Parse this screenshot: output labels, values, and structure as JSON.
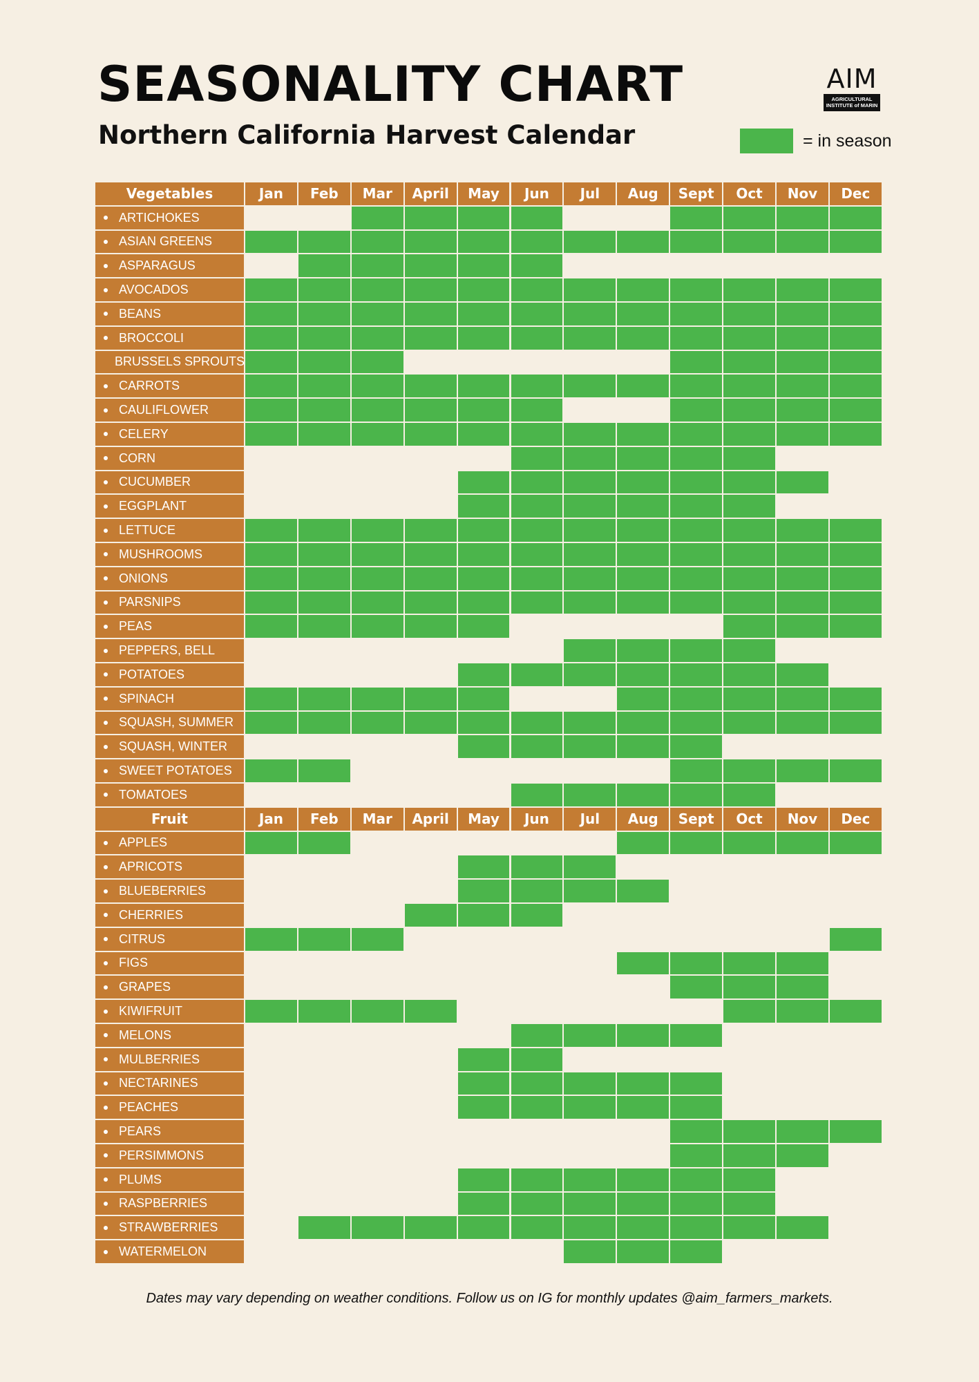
{
  "title": "SEASONALITY CHART",
  "subtitle": "Northern California Harvest Calendar",
  "logo": {
    "mark": "AIM",
    "line1": "AGRICULTURAL",
    "line2": "INSTITUTE of MARIN"
  },
  "legend": {
    "label": "= in season",
    "color": "#4bb54b"
  },
  "footer": "Dates may vary depending on weather conditions. Follow us on IG for monthly updates @aim_farmers_markets.",
  "colors": {
    "background": "#f6efe3",
    "header": "#c47c33",
    "in_season": "#4bb54b"
  },
  "chart_data": {
    "type": "table",
    "months": [
      "Jan",
      "Feb",
      "Mar",
      "April",
      "May",
      "Jun",
      "Jul",
      "Aug",
      "Sept",
      "Oct",
      "Nov",
      "Dec"
    ],
    "sections": [
      {
        "name": "Vegetables",
        "items": [
          {
            "name": "ARTICHOKES",
            "in_season": [
              0,
              0,
              1,
              1,
              1,
              1,
              0,
              0,
              1,
              1,
              1,
              1
            ]
          },
          {
            "name": "ASIAN GREENS",
            "in_season": [
              1,
              1,
              1,
              1,
              1,
              1,
              1,
              1,
              1,
              1,
              1,
              1
            ]
          },
          {
            "name": "ASPARAGUS",
            "in_season": [
              0,
              1,
              1,
              1,
              1,
              1,
              0,
              0,
              0,
              0,
              0,
              0
            ]
          },
          {
            "name": "AVOCADOS",
            "in_season": [
              1,
              1,
              1,
              1,
              1,
              1,
              1,
              1,
              1,
              1,
              1,
              1
            ]
          },
          {
            "name": "BEANS",
            "in_season": [
              1,
              1,
              1,
              1,
              1,
              1,
              1,
              1,
              1,
              1,
              1,
              1
            ]
          },
          {
            "name": "BROCCOLI",
            "in_season": [
              1,
              1,
              1,
              1,
              1,
              1,
              1,
              1,
              1,
              1,
              1,
              1
            ]
          },
          {
            "name": "BRUSSELS SPROUTS",
            "in_season": [
              1,
              1,
              1,
              0,
              0,
              0,
              0,
              0,
              1,
              1,
              1,
              1
            ]
          },
          {
            "name": "CARROTS",
            "in_season": [
              1,
              1,
              1,
              1,
              1,
              1,
              1,
              1,
              1,
              1,
              1,
              1
            ]
          },
          {
            "name": "CAULIFLOWER",
            "in_season": [
              1,
              1,
              1,
              1,
              1,
              1,
              0,
              0,
              1,
              1,
              1,
              1
            ]
          },
          {
            "name": "CELERY",
            "in_season": [
              1,
              1,
              1,
              1,
              1,
              1,
              1,
              1,
              1,
              1,
              1,
              1
            ]
          },
          {
            "name": "CORN",
            "in_season": [
              0,
              0,
              0,
              0,
              0,
              1,
              1,
              1,
              1,
              1,
              0,
              0
            ]
          },
          {
            "name": "CUCUMBER",
            "in_season": [
              0,
              0,
              0,
              0,
              1,
              1,
              1,
              1,
              1,
              1,
              1,
              0
            ]
          },
          {
            "name": "EGGPLANT",
            "in_season": [
              0,
              0,
              0,
              0,
              1,
              1,
              1,
              1,
              1,
              1,
              0,
              0
            ]
          },
          {
            "name": "LETTUCE",
            "in_season": [
              1,
              1,
              1,
              1,
              1,
              1,
              1,
              1,
              1,
              1,
              1,
              1
            ]
          },
          {
            "name": "MUSHROOMS",
            "in_season": [
              1,
              1,
              1,
              1,
              1,
              1,
              1,
              1,
              1,
              1,
              1,
              1
            ]
          },
          {
            "name": "ONIONS",
            "in_season": [
              1,
              1,
              1,
              1,
              1,
              1,
              1,
              1,
              1,
              1,
              1,
              1
            ]
          },
          {
            "name": "PARSNIPS",
            "in_season": [
              1,
              1,
              1,
              1,
              1,
              1,
              1,
              1,
              1,
              1,
              1,
              1
            ]
          },
          {
            "name": "PEAS",
            "in_season": [
              1,
              1,
              1,
              1,
              1,
              0,
              0,
              0,
              0,
              1,
              1,
              1
            ]
          },
          {
            "name": "PEPPERS, BELL",
            "in_season": [
              0,
              0,
              0,
              0,
              0,
              0,
              1,
              1,
              1,
              1,
              0,
              0
            ]
          },
          {
            "name": "POTATOES",
            "in_season": [
              0,
              0,
              0,
              0,
              1,
              1,
              1,
              1,
              1,
              1,
              1,
              0
            ]
          },
          {
            "name": "SPINACH",
            "in_season": [
              1,
              1,
              1,
              1,
              1,
              0,
              0,
              1,
              1,
              1,
              1,
              1
            ]
          },
          {
            "name": "SQUASH, SUMMER",
            "in_season": [
              1,
              1,
              1,
              1,
              1,
              1,
              1,
              1,
              1,
              1,
              1,
              1
            ]
          },
          {
            "name": "SQUASH, WINTER",
            "in_season": [
              0,
              0,
              0,
              0,
              1,
              1,
              1,
              1,
              1,
              0,
              0,
              0
            ]
          },
          {
            "name": "SWEET POTATOES",
            "in_season": [
              1,
              1,
              0,
              0,
              0,
              0,
              0,
              0,
              1,
              1,
              1,
              1
            ]
          },
          {
            "name": "TOMATOES",
            "in_season": [
              0,
              0,
              0,
              0,
              0,
              1,
              1,
              1,
              1,
              1,
              0,
              0
            ]
          }
        ]
      },
      {
        "name": "Fruit",
        "items": [
          {
            "name": "APPLES",
            "in_season": [
              1,
              1,
              0,
              0,
              0,
              0,
              0,
              1,
              1,
              1,
              1,
              1
            ]
          },
          {
            "name": "APRICOTS",
            "in_season": [
              0,
              0,
              0,
              0,
              1,
              1,
              1,
              0,
              0,
              0,
              0,
              0
            ]
          },
          {
            "name": "BLUEBERRIES",
            "in_season": [
              0,
              0,
              0,
              0,
              1,
              1,
              1,
              1,
              0,
              0,
              0,
              0
            ]
          },
          {
            "name": "CHERRIES",
            "in_season": [
              0,
              0,
              0,
              1,
              1,
              1,
              0,
              0,
              0,
              0,
              0,
              0
            ]
          },
          {
            "name": "CITRUS",
            "in_season": [
              1,
              1,
              1,
              0,
              0,
              0,
              0,
              0,
              0,
              0,
              0,
              1
            ]
          },
          {
            "name": "FIGS",
            "in_season": [
              0,
              0,
              0,
              0,
              0,
              0,
              0,
              1,
              1,
              1,
              1,
              0
            ]
          },
          {
            "name": "GRAPES",
            "in_season": [
              0,
              0,
              0,
              0,
              0,
              0,
              0,
              0,
              1,
              1,
              1,
              0
            ]
          },
          {
            "name": "KIWIFRUIT",
            "in_season": [
              1,
              1,
              1,
              1,
              0,
              0,
              0,
              0,
              0,
              1,
              1,
              1
            ]
          },
          {
            "name": "MELONS",
            "in_season": [
              0,
              0,
              0,
              0,
              0,
              1,
              1,
              1,
              1,
              0,
              0,
              0
            ]
          },
          {
            "name": "MULBERRIES",
            "in_season": [
              0,
              0,
              0,
              0,
              1,
              1,
              0,
              0,
              0,
              0,
              0,
              0
            ]
          },
          {
            "name": "NECTARINES",
            "in_season": [
              0,
              0,
              0,
              0,
              1,
              1,
              1,
              1,
              1,
              0,
              0,
              0
            ]
          },
          {
            "name": "PEACHES",
            "in_season": [
              0,
              0,
              0,
              0,
              1,
              1,
              1,
              1,
              1,
              0,
              0,
              0
            ]
          },
          {
            "name": "PEARS",
            "in_season": [
              0,
              0,
              0,
              0,
              0,
              0,
              0,
              0,
              1,
              1,
              1,
              1
            ]
          },
          {
            "name": "PERSIMMONS",
            "in_season": [
              0,
              0,
              0,
              0,
              0,
              0,
              0,
              0,
              1,
              1,
              1,
              0
            ]
          },
          {
            "name": "PLUMS",
            "in_season": [
              0,
              0,
              0,
              0,
              1,
              1,
              1,
              1,
              1,
              1,
              0,
              0
            ]
          },
          {
            "name": "RASPBERRIES",
            "in_season": [
              0,
              0,
              0,
              0,
              1,
              1,
              1,
              1,
              1,
              1,
              0,
              0
            ]
          },
          {
            "name": "STRAWBERRIES",
            "in_season": [
              0,
              1,
              1,
              1,
              1,
              1,
              1,
              1,
              1,
              1,
              1,
              0
            ]
          },
          {
            "name": "WATERMELON",
            "in_season": [
              0,
              0,
              0,
              0,
              0,
              0,
              1,
              1,
              1,
              0,
              0,
              0
            ]
          }
        ]
      }
    ]
  }
}
